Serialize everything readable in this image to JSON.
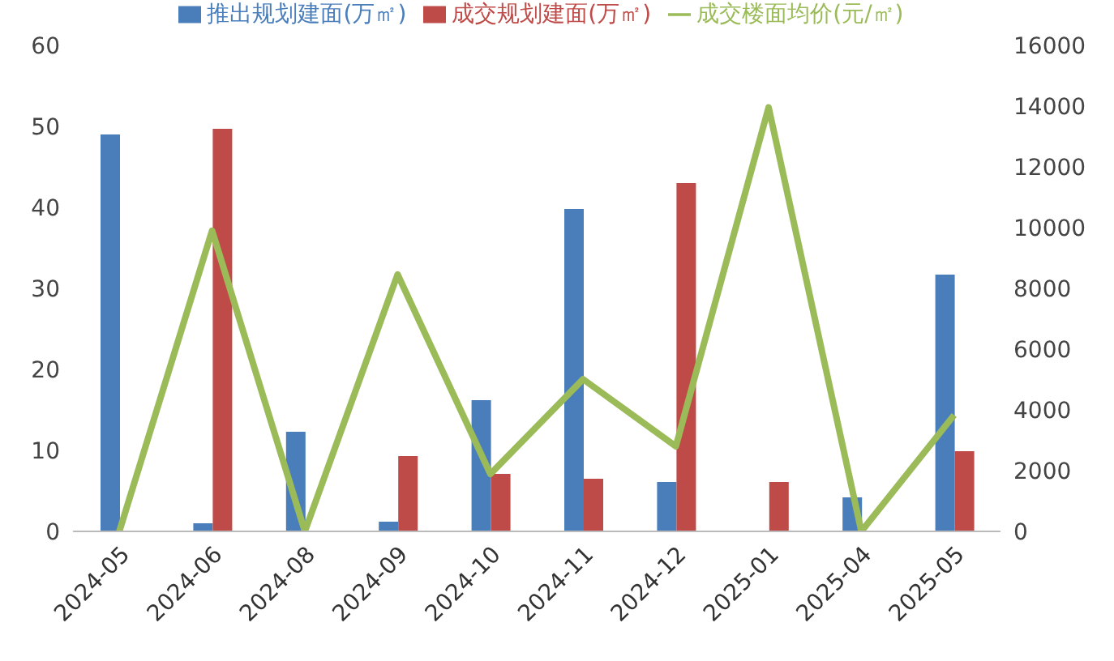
{
  "chart_data": {
    "type": "bar",
    "categories": [
      "2024-05",
      "2024-06",
      "2024-08",
      "2024-09",
      "2024-10",
      "2024-11",
      "2024-12",
      "2025-01",
      "2025-04",
      "2025-05"
    ],
    "series": [
      {
        "name": "推出规划建面(万㎡)",
        "color": "#4a7ebb",
        "values": [
          49,
          1,
          12.3,
          1.2,
          16.2,
          39.8,
          6.1,
          0,
          4.2,
          31.7
        ]
      },
      {
        "name": "成交规划建面(万㎡)",
        "color": "#be4b48",
        "values": [
          0,
          49.7,
          0,
          9.3,
          7.1,
          6.5,
          43,
          6.1,
          0,
          9.9
        ]
      },
      {
        "name": "成交楼面均价(元/㎡)",
        "type": "line",
        "axis": "y2",
        "color": "#9bbb59",
        "values": [
          0,
          9900,
          0,
          8460,
          1890,
          5010,
          2800,
          13960,
          0,
          3830
        ]
      }
    ],
    "ylim": [
      0,
      60
    ],
    "yticks": [
      0,
      10,
      20,
      30,
      40,
      50,
      60
    ],
    "y2lim": [
      0,
      16000
    ],
    "y2ticks": [
      0,
      2000,
      4000,
      6000,
      8000,
      10000,
      12000,
      14000,
      16000
    ],
    "legend": "top",
    "marker": "none",
    "line_style": "solid"
  }
}
